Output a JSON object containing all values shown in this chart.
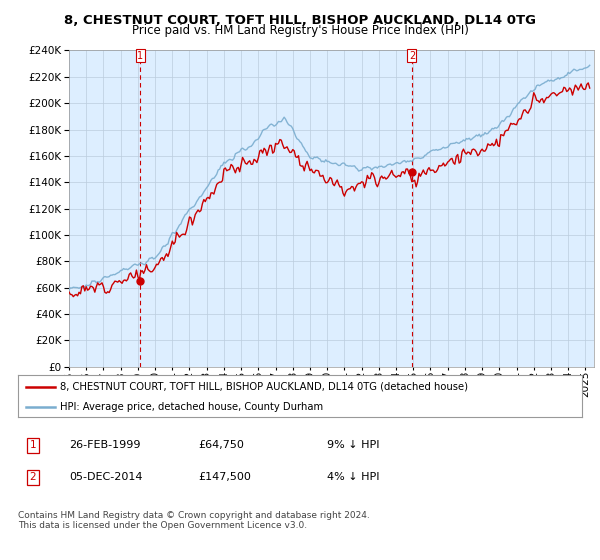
{
  "title": "8, CHESTNUT COURT, TOFT HILL, BISHOP AUCKLAND, DL14 0TG",
  "subtitle": "Price paid vs. HM Land Registry's House Price Index (HPI)",
  "ylim": [
    0,
    240000
  ],
  "yticks": [
    0,
    20000,
    40000,
    60000,
    80000,
    100000,
    120000,
    140000,
    160000,
    180000,
    200000,
    220000,
    240000
  ],
  "xlim_start": 1995.0,
  "xlim_end": 2025.5,
  "line_price_color": "#cc0000",
  "line_hpi_color": "#7aadcf",
  "sale1_x": 1999.15,
  "sale1_y": 64750,
  "sale2_x": 2014.92,
  "sale2_y": 147500,
  "vline_color": "#cc0000",
  "legend_line1": "8, CHESTNUT COURT, TOFT HILL, BISHOP AUCKLAND, DL14 0TG (detached house)",
  "legend_line2": "HPI: Average price, detached house, County Durham",
  "table_row1": [
    "1",
    "26-FEB-1999",
    "£64,750",
    "9% ↓ HPI"
  ],
  "table_row2": [
    "2",
    "05-DEC-2014",
    "£147,500",
    "4% ↓ HPI"
  ],
  "footer": "Contains HM Land Registry data © Crown copyright and database right 2024.\nThis data is licensed under the Open Government Licence v3.0.",
  "bg_color": "#ffffff",
  "chart_bg_color": "#ddeeff",
  "grid_color": "#bbccdd",
  "title_fontsize": 9.5,
  "subtitle_fontsize": 8.5,
  "tick_fontsize": 7.5
}
